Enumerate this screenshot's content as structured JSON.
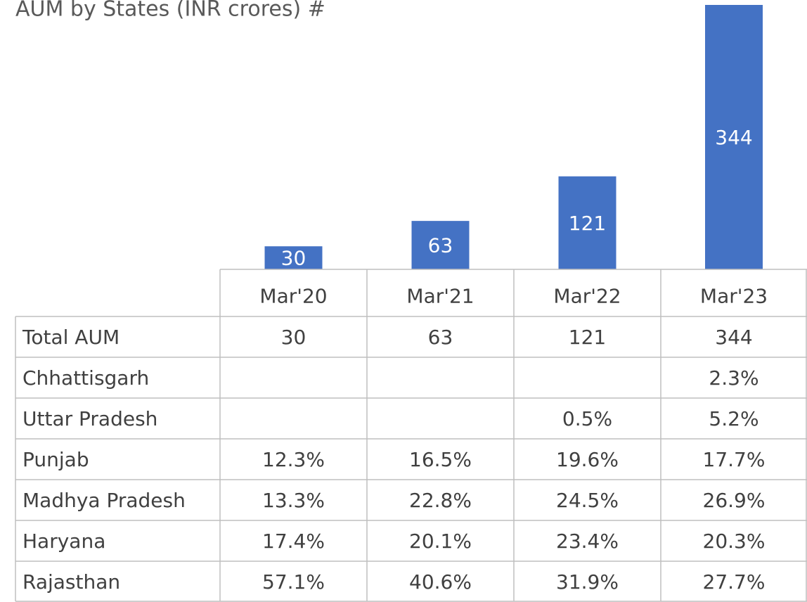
{
  "chart_data": {
    "type": "bar",
    "title": "AUM by States (INR crores) #",
    "color": "#4472c4",
    "categories": [
      "Mar'20",
      "Mar'21",
      "Mar'22",
      "Mar'23"
    ],
    "values": [
      30,
      63,
      121,
      344
    ],
    "table": {
      "total_label": "Total AUM",
      "rows": [
        {
          "label": "Chhattisgarh",
          "cells": [
            null,
            null,
            null,
            "2.3%"
          ]
        },
        {
          "label": "Uttar Pradesh",
          "cells": [
            null,
            null,
            "0.5%",
            "5.2%"
          ]
        },
        {
          "label": "Punjab",
          "cells": [
            "12.3%",
            "16.5%",
            "19.6%",
            "17.7%"
          ]
        },
        {
          "label": "Madhya Pradesh",
          "cells": [
            "13.3%",
            "22.8%",
            "24.5%",
            "26.9%"
          ]
        },
        {
          "label": "Haryana",
          "cells": [
            "17.4%",
            "20.1%",
            "23.4%",
            "20.3%"
          ]
        },
        {
          "label": "Rajasthan",
          "cells": [
            "57.1%",
            "40.6%",
            "31.9%",
            "27.7%"
          ]
        }
      ]
    }
  }
}
